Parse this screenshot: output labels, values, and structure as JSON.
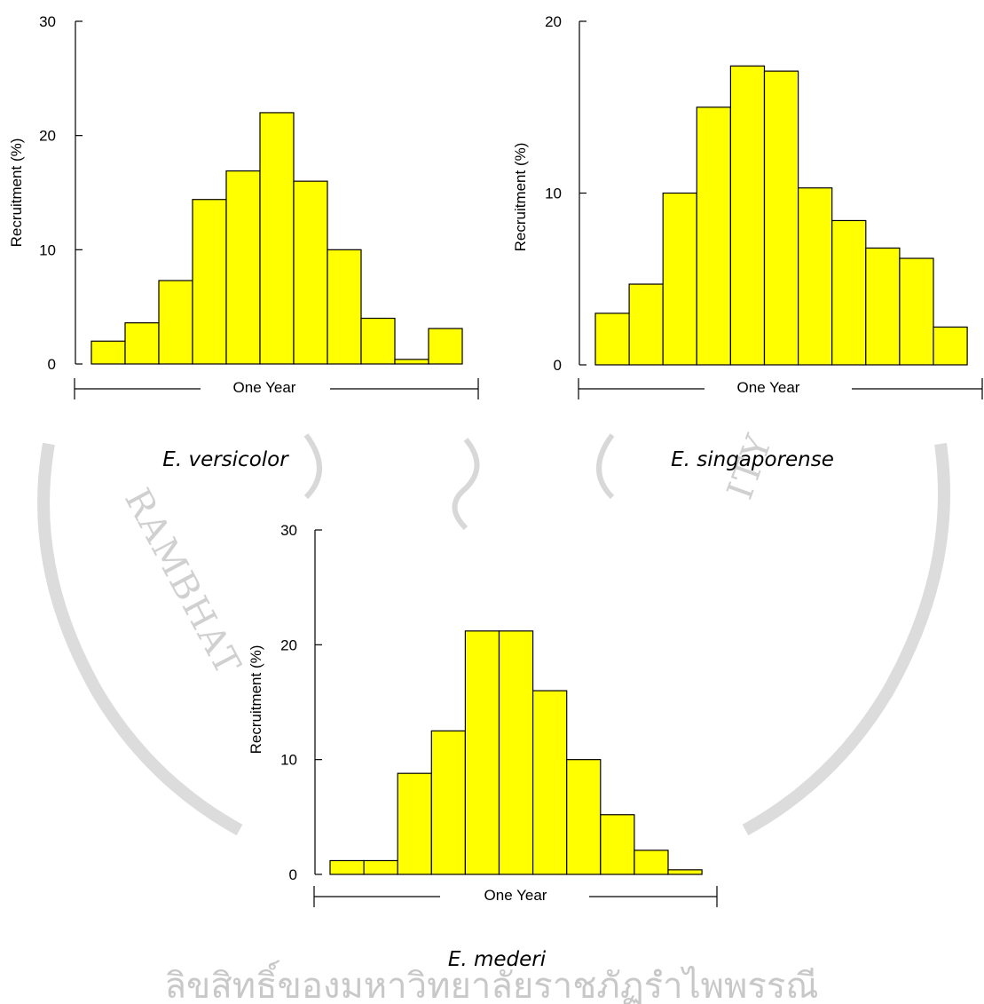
{
  "watermark": {
    "left_text": "RAMBHAT",
    "right_text": "ITY"
  },
  "footer": {
    "text": "ลิขสิทธิ์ของมหาวิทยาลัยราชภัฏรำไพพรรณี"
  },
  "colors": {
    "bar_fill": "#ffff00",
    "bar_stroke": "#000000",
    "watermark": "#d0d0d0"
  },
  "chart_data": [
    {
      "type": "bar",
      "title": "E. versicolor",
      "ylabel": "Recruitment (%)",
      "xlabel": "One Year",
      "ylim": [
        0,
        30
      ],
      "yticks": [
        0,
        10,
        20,
        30
      ],
      "values": [
        2.0,
        3.6,
        7.3,
        14.4,
        16.9,
        22.0,
        16.0,
        10.0,
        4.0,
        0.4,
        3.1
      ]
    },
    {
      "type": "bar",
      "title": "E. singaporense",
      "ylabel": "Recruitment (%)",
      "xlabel": "One Year",
      "ylim": [
        0,
        20
      ],
      "yticks": [
        0,
        10,
        20
      ],
      "values": [
        3.0,
        4.7,
        10.0,
        15.0,
        17.4,
        17.1,
        10.3,
        8.4,
        6.8,
        6.2,
        2.2
      ]
    },
    {
      "type": "bar",
      "title": "E. mederi",
      "ylabel": "Recruitment (%)",
      "xlabel": "One Year",
      "ylim": [
        0,
        30
      ],
      "yticks": [
        0,
        10,
        20,
        30
      ],
      "values": [
        1.2,
        1.2,
        8.8,
        12.5,
        21.2,
        21.2,
        16.0,
        10.0,
        5.2,
        2.1,
        0.4
      ]
    }
  ]
}
